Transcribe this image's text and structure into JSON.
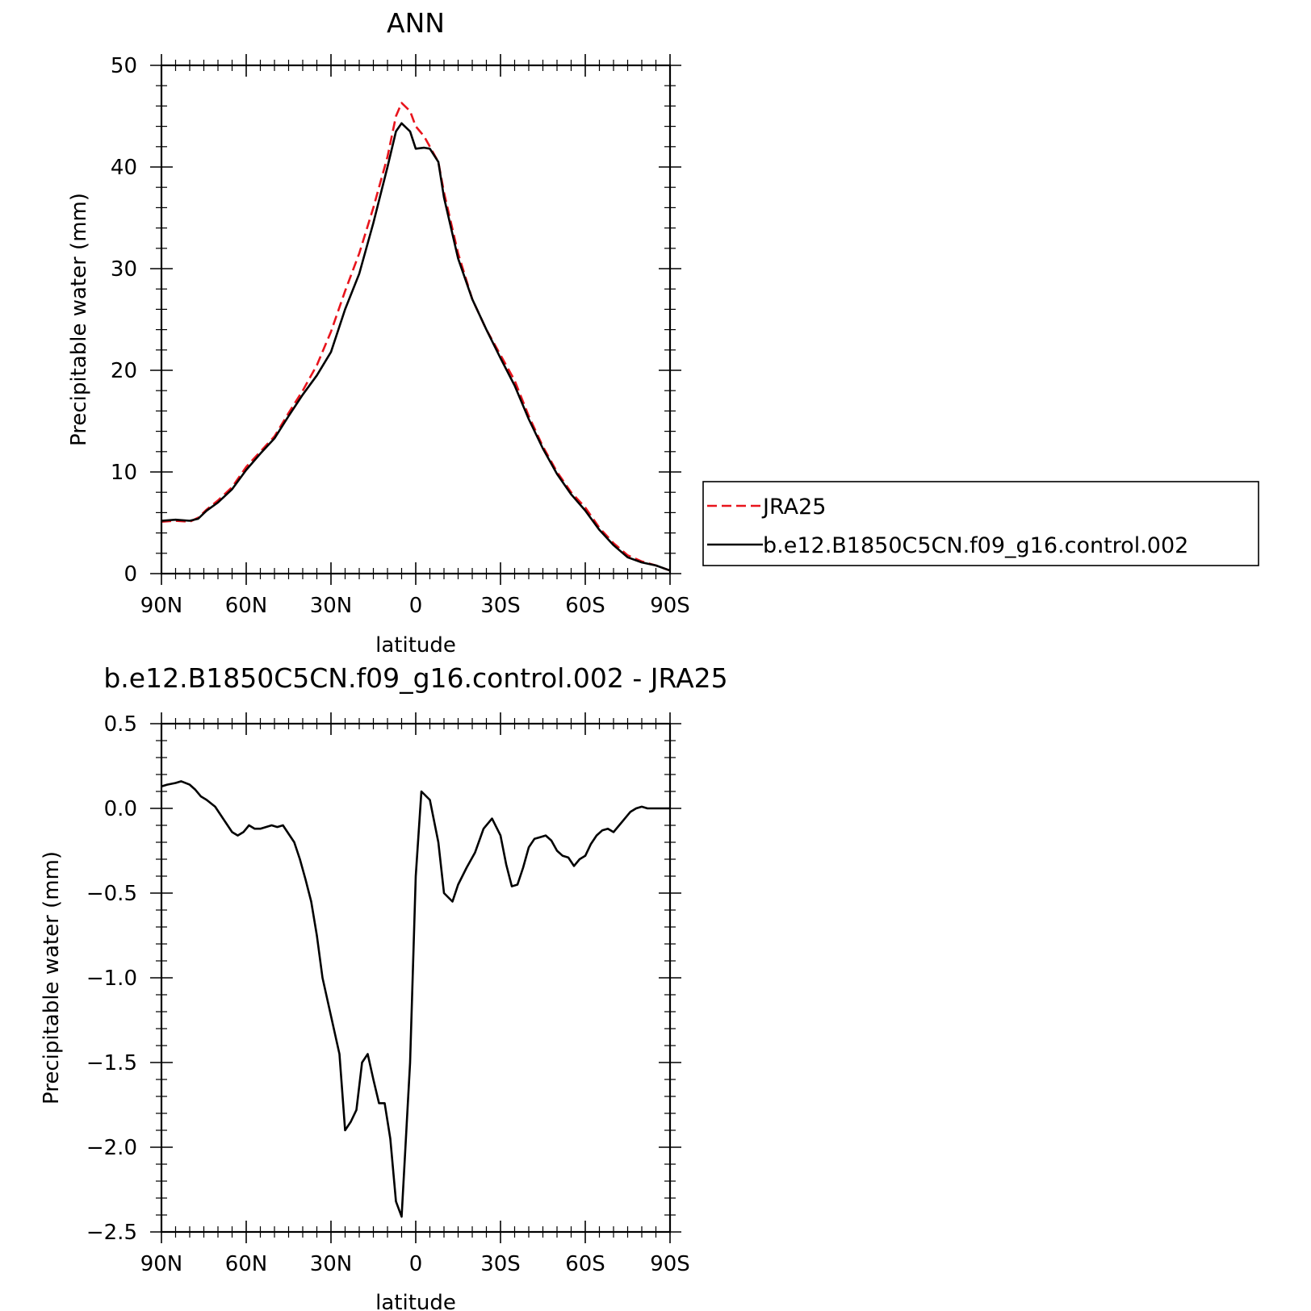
{
  "chart_data": [
    {
      "type": "line",
      "title": "ANN",
      "xlabel": "latitude",
      "ylabel": "Precipitable water (mm)",
      "xlim": [
        90,
        -90
      ],
      "ylim": [
        0,
        50
      ],
      "xticks": [
        90,
        60,
        30,
        0,
        -30,
        -60,
        -90
      ],
      "xtick_labels": [
        "90N",
        "60N",
        "30N",
        "0",
        "30S",
        "60S",
        "90S"
      ],
      "yticks": [
        0,
        10,
        20,
        30,
        40,
        50
      ],
      "ytick_labels": [
        "0",
        "10",
        "20",
        "30",
        "40",
        "50"
      ],
      "legend_position": "right",
      "series": [
        {
          "name": "JRA25",
          "color": "#e8141c",
          "style": "dashed",
          "x": [
            90,
            85,
            80,
            77,
            74,
            70,
            65,
            60,
            55,
            50,
            45,
            40,
            35,
            30,
            25,
            20,
            15,
            10,
            7,
            5,
            2,
            0,
            -3,
            -5,
            -8,
            -10,
            -15,
            -20,
            -25,
            -30,
            -35,
            -40,
            -45,
            -50,
            -55,
            -60,
            -65,
            -70,
            -75,
            -80,
            -85,
            -90
          ],
          "y": [
            5.1,
            5.2,
            5.1,
            5.5,
            6.3,
            7.2,
            8.5,
            10.5,
            12.0,
            13.5,
            15.8,
            18.0,
            20.5,
            23.8,
            27.8,
            31.5,
            36.0,
            41.0,
            45.0,
            46.3,
            45.5,
            44.0,
            43.0,
            42.0,
            40.5,
            37.5,
            31.5,
            27.0,
            24.0,
            21.5,
            19.0,
            15.5,
            12.5,
            10.0,
            8.0,
            6.5,
            4.5,
            3.0,
            1.8,
            1.2,
            0.8,
            0.3
          ]
        },
        {
          "name": "b.e12.B1850C5CN.f09_g16.control.002",
          "color": "#000000",
          "style": "solid",
          "x": [
            90,
            85,
            80,
            77,
            74,
            70,
            65,
            60,
            55,
            50,
            45,
            40,
            35,
            30,
            25,
            20,
            15,
            10,
            7,
            5,
            2,
            0,
            -3,
            -5,
            -8,
            -10,
            -15,
            -20,
            -25,
            -30,
            -35,
            -40,
            -45,
            -50,
            -55,
            -60,
            -65,
            -70,
            -75,
            -80,
            -85,
            -90
          ],
          "y": [
            5.2,
            5.3,
            5.2,
            5.4,
            6.2,
            7.0,
            8.3,
            10.2,
            11.8,
            13.3,
            15.5,
            17.6,
            19.5,
            21.8,
            26.0,
            29.5,
            34.5,
            40.0,
            43.5,
            44.3,
            43.5,
            41.8,
            41.9,
            41.8,
            40.5,
            37.0,
            31.0,
            27.0,
            24.0,
            21.2,
            18.5,
            15.2,
            12.3,
            9.8,
            7.8,
            6.2,
            4.3,
            2.8,
            1.6,
            1.1,
            0.8,
            0.3
          ]
        }
      ]
    },
    {
      "type": "line",
      "title": "b.e12.B1850C5CN.f09_g16.control.002 - JRA25",
      "xlabel": "latitude",
      "ylabel": "Precipitable water (mm)",
      "xlim": [
        90,
        -90
      ],
      "ylim": [
        -2.5,
        0.5
      ],
      "xticks": [
        90,
        60,
        30,
        0,
        -30,
        -60,
        -90
      ],
      "xtick_labels": [
        "90N",
        "60N",
        "30N",
        "0",
        "30S",
        "60S",
        "90S"
      ],
      "yticks": [
        0.5,
        0.0,
        -0.5,
        -1.0,
        -1.5,
        -2.0,
        -2.5
      ],
      "ytick_labels": [
        "0.5",
        "0.0",
        "−0.5",
        "−1.0",
        "−1.5",
        "−2.0",
        "−2.5"
      ],
      "series": [
        {
          "color": "#000000",
          "style": "solid",
          "x": [
            90,
            88,
            85,
            83,
            80,
            78,
            76,
            74,
            71,
            69,
            67,
            65,
            63,
            61,
            59,
            57,
            55,
            53,
            51,
            49,
            47,
            45,
            43,
            41,
            39,
            37,
            35,
            33,
            31,
            29,
            27,
            25,
            23,
            21,
            19,
            17,
            15,
            13,
            11,
            9,
            7,
            5,
            2,
            0,
            -2,
            -5,
            -8,
            -10,
            -13,
            -15,
            -18,
            -21,
            -24,
            -27,
            -30,
            -32,
            -34,
            -36,
            -38,
            -40,
            -42,
            -44,
            -46,
            -48,
            -50,
            -52,
            -54,
            -56,
            -58,
            -60,
            -62,
            -64,
            -66,
            -68,
            -70,
            -72,
            -74,
            -76,
            -78,
            -80,
            -82,
            -84,
            -86,
            -88,
            -90
          ],
          "y": [
            0.13,
            0.14,
            0.15,
            0.16,
            0.14,
            0.11,
            0.07,
            0.05,
            0.01,
            -0.04,
            -0.09,
            -0.14,
            -0.16,
            -0.14,
            -0.1,
            -0.12,
            -0.12,
            -0.11,
            -0.1,
            -0.11,
            -0.1,
            -0.15,
            -0.2,
            -0.3,
            -0.42,
            -0.55,
            -0.75,
            -1.0,
            -1.15,
            -1.3,
            -1.45,
            -1.9,
            -1.85,
            -1.78,
            -1.5,
            -1.45,
            -1.6,
            -1.74,
            -1.74,
            -1.95,
            -2.32,
            -2.41,
            -1.5,
            -0.4,
            0.1,
            0.05,
            -0.2,
            -0.5,
            -0.55,
            -0.45,
            -0.35,
            -0.26,
            -0.12,
            -0.06,
            -0.16,
            -0.33,
            -0.46,
            -0.45,
            -0.35,
            -0.23,
            -0.18,
            -0.17,
            -0.16,
            -0.19,
            -0.25,
            -0.28,
            -0.29,
            -0.34,
            -0.3,
            -0.28,
            -0.21,
            -0.16,
            -0.13,
            -0.12,
            -0.14,
            -0.1,
            -0.06,
            -0.02,
            0.0,
            0.01,
            0.0,
            0.0,
            0.0,
            0.0,
            0.0
          ]
        }
      ]
    }
  ]
}
